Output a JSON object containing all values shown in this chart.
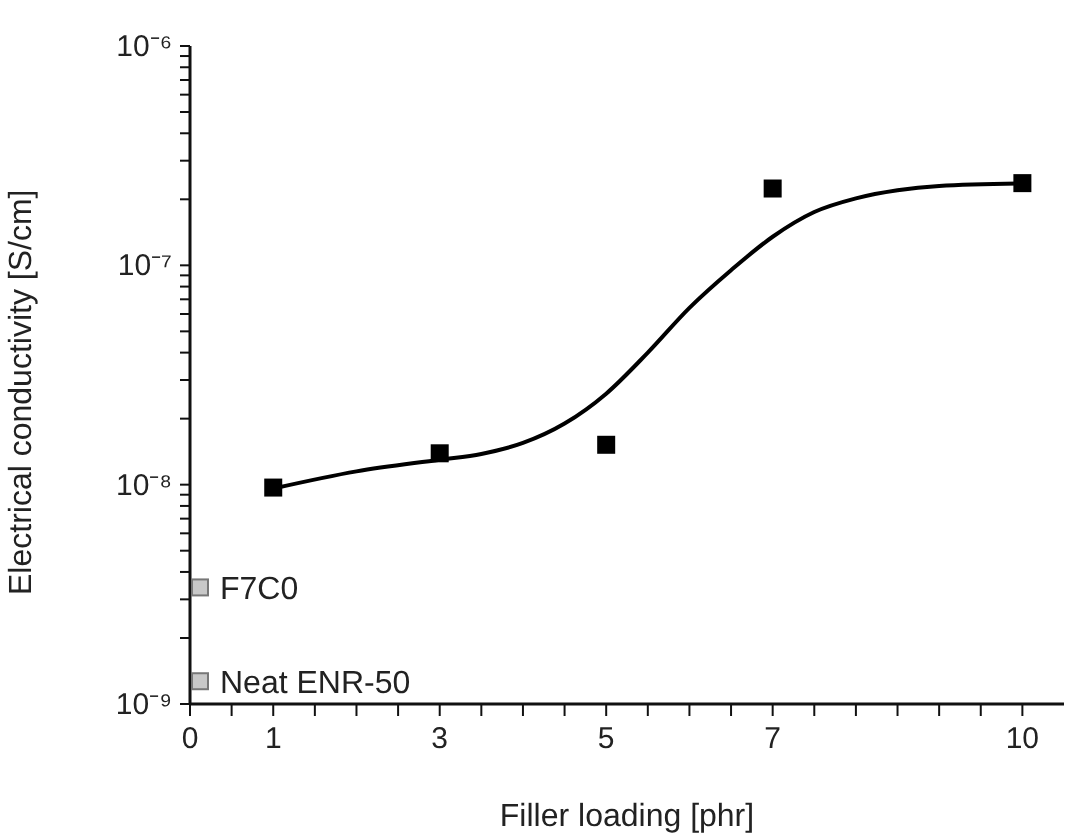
{
  "chart_data": {
    "type": "scatter",
    "xlabel": "Filler loading [phr]",
    "ylabel": "Electrical conductivity [S/cm]",
    "log": "y",
    "marker": "square",
    "legend": false,
    "xlim": [
      0,
      10.5
    ],
    "xticks": [
      0,
      {
        "value": 0.5,
        "label": null
      },
      1,
      {
        "value": 1.5,
        "label": null
      },
      {
        "value": 2,
        "label": null
      },
      {
        "value": 2.5,
        "label": null
      },
      3,
      {
        "value": 3.5,
        "label": null
      },
      {
        "value": 4,
        "label": null
      },
      {
        "value": 4.5,
        "label": null
      },
      5,
      {
        "value": 5.5,
        "label": null
      },
      {
        "value": 6,
        "label": null
      },
      {
        "value": 6.5,
        "label": null
      },
      7,
      {
        "value": 7.5,
        "label": null
      },
      {
        "value": 8,
        "label": null
      },
      {
        "value": 8.5,
        "label": null
      },
      {
        "value": 9,
        "label": null
      },
      {
        "value": 9.5,
        "label": null
      },
      10
    ],
    "ylim": [
      1e-09,
      1e-06
    ],
    "yticks": [
      {
        "value": 1e-09,
        "label": "10⁻⁹"
      },
      {
        "value": 2e-09,
        "label": null
      },
      {
        "value": 3e-09,
        "label": null
      },
      {
        "value": 4e-09,
        "label": null
      },
      {
        "value": 5e-09,
        "label": null
      },
      {
        "value": 6e-09,
        "label": null
      },
      {
        "value": 7e-09,
        "label": null
      },
      {
        "value": 8e-09,
        "label": null
      },
      {
        "value": 9e-09,
        "label": null
      },
      {
        "value": 1e-08,
        "label": "10⁻⁸"
      },
      {
        "value": 2e-08,
        "label": null
      },
      {
        "value": 3e-08,
        "label": null
      },
      {
        "value": 4e-08,
        "label": null
      },
      {
        "value": 5e-08,
        "label": null
      },
      {
        "value": 6e-08,
        "label": null
      },
      {
        "value": 7e-08,
        "label": null
      },
      {
        "value": 8e-08,
        "label": null
      },
      {
        "value": 9e-08,
        "label": null
      },
      {
        "value": 1e-07,
        "label": "10⁻⁷"
      },
      {
        "value": 2e-07,
        "label": null
      },
      {
        "value": 3e-07,
        "label": null
      },
      {
        "value": 4e-07,
        "label": null
      },
      {
        "value": 5e-07,
        "label": null
      },
      {
        "value": 6e-07,
        "label": null
      },
      {
        "value": 7e-07,
        "label": null
      },
      {
        "value": 8e-07,
        "label": null
      },
      {
        "value": 9e-07,
        "label": null
      },
      {
        "value": 1e-06,
        "label": "10⁻⁶"
      }
    ],
    "series": [
      {
        "type": "line",
        "marker": "none",
        "line_style": "solid",
        "color": "#000000",
        "x": [
          1,
          2,
          3,
          3.5,
          4,
          4.5,
          5,
          5.5,
          6,
          6.5,
          7,
          7.5,
          8,
          8.5,
          9,
          10
        ],
        "values": [
          9.6e-09,
          1.15e-08,
          1.3e-08,
          1.38e-08,
          1.55e-08,
          1.9e-08,
          2.6e-08,
          4e-08,
          6.4e-08,
          9.5e-08,
          1.35e-07,
          1.75e-07,
          2.02e-07,
          2.2e-07,
          2.3e-07,
          2.36e-07
        ]
      },
      {
        "color": "#000000",
        "x": [
          1,
          3,
          5,
          7,
          10
        ],
        "values": [
          9.7e-09,
          1.39e-08,
          1.52e-08,
          2.24e-07,
          2.37e-07
        ]
      },
      {
        "name": "F7C0",
        "color": "#c8c8c8",
        "x": [
          0.12
        ],
        "values": [
          3.4e-09
        ]
      },
      {
        "name": "Neat ENR-50",
        "color": "#c8c8c8",
        "x": [
          0.12
        ],
        "values": [
          1.27e-09
        ]
      }
    ]
  }
}
